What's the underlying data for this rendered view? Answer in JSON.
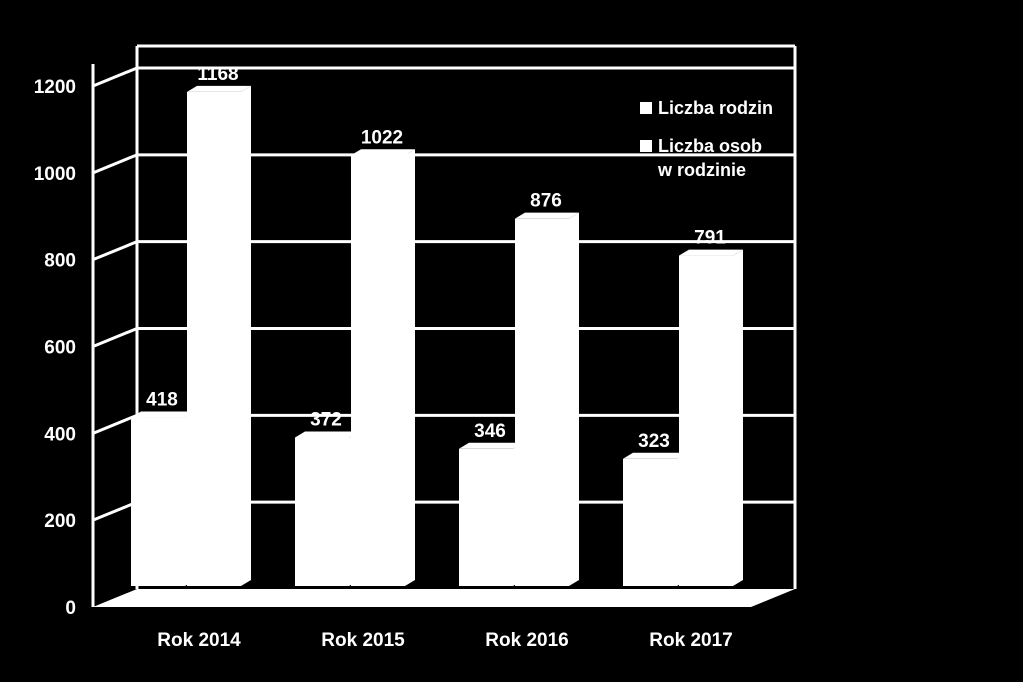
{
  "chart_data": {
    "type": "bar",
    "categories": [
      "Rok 2014",
      "Rok 2015",
      "Rok 2016",
      "Rok 2017"
    ],
    "series": [
      {
        "name": "Liczba rodzin",
        "values": [
          418,
          372,
          346,
          323
        ]
      },
      {
        "name": "Liczba osob w rodzinie",
        "values": [
          1168,
          1022,
          876,
          791
        ]
      }
    ],
    "ylim": [
      0,
      1200
    ],
    "yticks": [
      0,
      200,
      400,
      600,
      800,
      1000,
      1200
    ],
    "grid": true,
    "legend_position": "top-right",
    "style": "3d-columns",
    "colors": {
      "background": "#000000",
      "bars": "#ffffff",
      "grid": "#ffffff",
      "text": "#ffffff"
    }
  }
}
